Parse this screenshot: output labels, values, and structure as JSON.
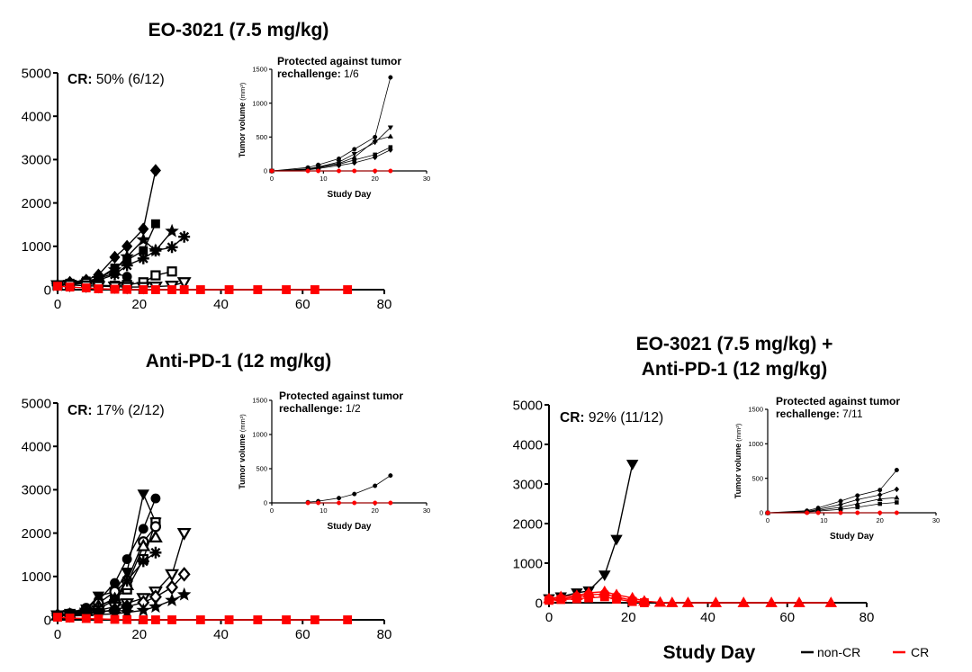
{
  "legend": {
    "noncr_label": "non-CR",
    "cr_label": "CR",
    "noncr_color": "#000000",
    "cr_color": "#ff0000"
  },
  "shared_xlabel": "Study Day",
  "chart_data": [
    {
      "type": "line",
      "title_lines": [
        "EO-3021 (7.5 mg/kg)"
      ],
      "cr_label": "CR:",
      "cr_value": "50% (6/12)",
      "xlim": [
        0,
        80
      ],
      "ylim": [
        0,
        5000
      ],
      "xticks": [
        "0",
        "20",
        "40",
        "60",
        "80"
      ],
      "yticks": [
        "0",
        "1000",
        "2000",
        "3000",
        "4000",
        "5000"
      ],
      "series": [
        {
          "group": "non-CR",
          "marker": "diamond",
          "x": [
            0,
            3,
            7,
            10,
            14,
            17,
            21,
            24
          ],
          "y": [
            100,
            170,
            220,
            340,
            750,
            1000,
            1400,
            2750
          ]
        },
        {
          "group": "non-CR",
          "marker": "square",
          "x": [
            0,
            3,
            7,
            10,
            14,
            17,
            21,
            24
          ],
          "y": [
            100,
            150,
            200,
            260,
            500,
            680,
            900,
            1520
          ]
        },
        {
          "group": "non-CR",
          "marker": "star",
          "x": [
            0,
            3,
            7,
            10,
            14,
            17,
            21,
            24,
            28
          ],
          "y": [
            100,
            130,
            180,
            260,
            460,
            760,
            1150,
            900,
            1350
          ]
        },
        {
          "group": "non-CR",
          "marker": "asterisk",
          "x": [
            0,
            3,
            7,
            10,
            14,
            17,
            21,
            24,
            28,
            31
          ],
          "y": [
            100,
            120,
            160,
            220,
            350,
            560,
            720,
            900,
            980,
            1220
          ]
        },
        {
          "group": "non-CR",
          "marker": "circle",
          "x": [
            0,
            3,
            7,
            10,
            14,
            17
          ],
          "y": [
            100,
            140,
            180,
            260,
            380,
            300
          ]
        },
        {
          "group": "non-CR",
          "marker": "square-open",
          "x": [
            0,
            3,
            7,
            10,
            14,
            17,
            21,
            24,
            28
          ],
          "y": [
            100,
            120,
            150,
            100,
            90,
            110,
            170,
            330,
            420
          ]
        },
        {
          "group": "non-CR",
          "marker": "triangle-down-open",
          "x": [
            0,
            3,
            7,
            10,
            14,
            17,
            21,
            24,
            28,
            31
          ],
          "y": [
            100,
            110,
            90,
            80,
            70,
            60,
            60,
            70,
            90,
            170
          ]
        },
        {
          "group": "CR",
          "marker": "square",
          "x": [
            0,
            3,
            7,
            10,
            14,
            17,
            21,
            24,
            28,
            31,
            35,
            42,
            49,
            56,
            63,
            71
          ],
          "y": [
            80,
            60,
            40,
            20,
            10,
            5,
            0,
            0,
            0,
            0,
            0,
            0,
            0,
            0,
            0,
            0
          ]
        }
      ],
      "inset": {
        "protected_label": "Protected against tumor",
        "rechallenge_label": "rechallenge:",
        "rechallenge_value": "1/6",
        "ylabel": "Tumor volume",
        "ylabel_unit": "(mm³)",
        "xlabel": "Study Day",
        "xlim": [
          0,
          30
        ],
        "ylim": [
          0,
          1500
        ],
        "xticks": [
          "0",
          "10",
          "20",
          "30"
        ],
        "yticks": [
          "0",
          "500",
          "1000",
          "1500"
        ],
        "series": [
          {
            "group": "non-CR",
            "marker": "circle",
            "x": [
              0,
              7,
              9,
              13,
              16,
              20,
              23
            ],
            "y": [
              0,
              50,
              90,
              180,
              320,
              500,
              1380
            ]
          },
          {
            "group": "non-CR",
            "marker": "triangle-down",
            "x": [
              0,
              7,
              9,
              13,
              16,
              20,
              23
            ],
            "y": [
              0,
              30,
              60,
              130,
              250,
              420,
              640
            ]
          },
          {
            "group": "non-CR",
            "marker": "triangle",
            "x": [
              0,
              7,
              9,
              13,
              16,
              20,
              23
            ],
            "y": [
              0,
              25,
              50,
              110,
              200,
              450,
              510
            ]
          },
          {
            "group": "non-CR",
            "marker": "square",
            "x": [
              0,
              7,
              9,
              13,
              16,
              20,
              23
            ],
            "y": [
              0,
              20,
              45,
              100,
              160,
              240,
              350
            ]
          },
          {
            "group": "non-CR",
            "marker": "diamond",
            "x": [
              0,
              7,
              9,
              13,
              16,
              20,
              23
            ],
            "y": [
              0,
              15,
              35,
              80,
              120,
              200,
              310
            ]
          },
          {
            "group": "CR",
            "marker": "circle",
            "x": [
              0,
              7,
              9,
              13,
              16,
              20,
              23
            ],
            "y": [
              0,
              0,
              0,
              0,
              0,
              0,
              0
            ]
          }
        ]
      }
    },
    {
      "type": "line",
      "title_lines": [
        "Anti-PD-1 (12 mg/kg)"
      ],
      "cr_label": "CR:",
      "cr_value": "17% (2/12)",
      "xlim": [
        0,
        80
      ],
      "ylim": [
        0,
        5000
      ],
      "xticks": [
        "0",
        "20",
        "40",
        "60",
        "80"
      ],
      "yticks": [
        "0",
        "1000",
        "2000",
        "3000",
        "4000",
        "5000"
      ],
      "series": [
        {
          "group": "non-CR",
          "marker": "circle",
          "x": [
            0,
            3,
            7,
            10,
            14,
            17,
            21,
            24
          ],
          "y": [
            100,
            150,
            280,
            450,
            850,
            1400,
            2100,
            2800
          ]
        },
        {
          "group": "non-CR",
          "marker": "triangle-down",
          "x": [
            0,
            3,
            7,
            10,
            14,
            17,
            21,
            24
          ],
          "y": [
            100,
            150,
            250,
            550,
            650,
            1100,
            2900,
            2250
          ]
        },
        {
          "group": "non-CR",
          "marker": "square-open",
          "x": [
            0,
            3,
            7,
            10,
            14,
            17,
            21,
            24
          ],
          "y": [
            100,
            130,
            200,
            300,
            500,
            700,
            1400,
            2250
          ]
        },
        {
          "group": "non-CR",
          "marker": "circle-open",
          "x": [
            0,
            3,
            7,
            10,
            14,
            17,
            21,
            24
          ],
          "y": [
            100,
            140,
            220,
            380,
            650,
            900,
            1800,
            2150
          ]
        },
        {
          "group": "non-CR",
          "marker": "triangle-open",
          "x": [
            0,
            3,
            7,
            10,
            14,
            17,
            21,
            24
          ],
          "y": [
            100,
            120,
            200,
            320,
            480,
            800,
            1700,
            1900
          ]
        },
        {
          "group": "non-CR",
          "marker": "asterisk",
          "x": [
            0,
            3,
            7,
            10,
            14,
            17,
            21,
            24
          ],
          "y": [
            100,
            120,
            190,
            260,
            450,
            900,
            1350,
            1550
          ]
        },
        {
          "group": "non-CR",
          "marker": "triangle-down-open",
          "x": [
            0,
            3,
            7,
            10,
            14,
            17,
            21,
            24,
            28,
            31
          ],
          "y": [
            100,
            110,
            160,
            220,
            300,
            380,
            500,
            650,
            1050,
            2000
          ]
        },
        {
          "group": "non-CR",
          "marker": "diamond-open",
          "x": [
            0,
            3,
            7,
            10,
            14,
            17,
            21,
            24,
            28,
            31
          ],
          "y": [
            100,
            100,
            130,
            170,
            230,
            300,
            400,
            530,
            750,
            1050
          ]
        },
        {
          "group": "non-CR",
          "marker": "star",
          "x": [
            0,
            3,
            7,
            10,
            14,
            17,
            21,
            24,
            28,
            31
          ],
          "y": [
            100,
            90,
            100,
            120,
            140,
            170,
            220,
            300,
            450,
            580
          ]
        },
        {
          "group": "non-CR",
          "marker": "square",
          "x": [
            0,
            3,
            7,
            10,
            14,
            17
          ],
          "y": [
            100,
            110,
            140,
            180,
            230,
            300
          ]
        },
        {
          "group": "CR",
          "marker": "square",
          "x": [
            0,
            3,
            7,
            10,
            14,
            17,
            21,
            24,
            28,
            35,
            42,
            49,
            56,
            63,
            71
          ],
          "y": [
            60,
            40,
            30,
            20,
            10,
            5,
            0,
            0,
            0,
            0,
            0,
            0,
            0,
            0,
            0
          ]
        }
      ],
      "inset": {
        "protected_label": "Protected against tumor",
        "rechallenge_label": "rechallenge:",
        "rechallenge_value": "1/2",
        "ylabel": "Tumor volume",
        "ylabel_unit": "(mm³)",
        "xlabel": "Study Day",
        "xlim": [
          0,
          30
        ],
        "ylim": [
          0,
          1500
        ],
        "xticks": [
          "0",
          "10",
          "20",
          "30"
        ],
        "yticks": [
          "0",
          "500",
          "1000",
          "1500"
        ],
        "series": [
          {
            "group": "non-CR",
            "marker": "circle",
            "x": [
              7,
              9,
              13,
              16,
              20,
              23
            ],
            "y": [
              10,
              25,
              70,
              130,
              250,
              400
            ]
          },
          {
            "group": "CR",
            "marker": "circle",
            "x": [
              7,
              9,
              13,
              16,
              20,
              23
            ],
            "y": [
              0,
              0,
              0,
              0,
              0,
              0
            ]
          }
        ]
      }
    },
    {
      "type": "line",
      "title_lines": [
        "EO-3021 (7.5 mg/kg) +",
        "Anti-PD-1 (12 mg/kg)"
      ],
      "cr_label": "CR:",
      "cr_value": "92% (11/12)",
      "xlim": [
        0,
        80
      ],
      "ylim": [
        0,
        5000
      ],
      "xticks": [
        "0",
        "20",
        "40",
        "60",
        "80"
      ],
      "yticks": [
        "0",
        "1000",
        "2000",
        "3000",
        "4000",
        "5000"
      ],
      "series": [
        {
          "group": "non-CR",
          "marker": "triangle-down",
          "x": [
            0,
            3,
            7,
            10,
            14,
            17,
            21
          ],
          "y": [
            100,
            150,
            250,
            300,
            700,
            1600,
            3500
          ]
        },
        {
          "group": "CR",
          "marker": "triangle",
          "x": [
            0,
            3,
            7,
            10,
            14,
            17,
            21,
            24,
            28,
            31,
            35,
            42,
            49,
            56,
            63,
            71
          ],
          "y": [
            100,
            150,
            180,
            250,
            280,
            200,
            120,
            40,
            10,
            0,
            0,
            0,
            0,
            0,
            0,
            0
          ]
        },
        {
          "group": "CR",
          "marker": "circle",
          "x": [
            0,
            3,
            7,
            10,
            14,
            17,
            21,
            24
          ],
          "y": [
            80,
            100,
            150,
            200,
            220,
            150,
            60,
            10
          ]
        },
        {
          "group": "CR",
          "marker": "square",
          "x": [
            0,
            3,
            7,
            10,
            14,
            17,
            21,
            24
          ],
          "y": [
            60,
            80,
            100,
            120,
            150,
            90,
            30,
            0
          ]
        }
      ],
      "inset": {
        "protected_label": "Protected against tumor",
        "rechallenge_label": "rechallenge:",
        "rechallenge_value": "7/11",
        "ylabel": "Tumor volume",
        "ylabel_unit": "(mm³)",
        "xlabel": "Study Day",
        "xlim": [
          0,
          30
        ],
        "ylim": [
          0,
          1500
        ],
        "xticks": [
          "0",
          "10",
          "20",
          "30"
        ],
        "yticks": [
          "0",
          "500",
          "1000",
          "1500"
        ],
        "series": [
          {
            "group": "non-CR",
            "marker": "circle",
            "x": [
              0,
              7,
              9,
              13,
              16,
              20,
              23
            ],
            "y": [
              0,
              30,
              70,
              170,
              250,
              330,
              620
            ]
          },
          {
            "group": "non-CR",
            "marker": "diamond",
            "x": [
              0,
              7,
              9,
              13,
              16,
              20,
              23
            ],
            "y": [
              0,
              20,
              50,
              120,
              190,
              260,
              340
            ]
          },
          {
            "group": "non-CR",
            "marker": "triangle",
            "x": [
              0,
              7,
              9,
              13,
              16,
              20,
              23
            ],
            "y": [
              0,
              15,
              35,
              80,
              130,
              200,
              220
            ]
          },
          {
            "group": "non-CR",
            "marker": "square",
            "x": [
              0,
              7,
              9,
              13,
              16,
              20,
              23
            ],
            "y": [
              0,
              10,
              25,
              50,
              80,
              130,
              150
            ]
          },
          {
            "group": "CR",
            "marker": "circle",
            "x": [
              0,
              7,
              9,
              13,
              16,
              20,
              23
            ],
            "y": [
              0,
              0,
              0,
              0,
              0,
              0,
              0
            ]
          }
        ]
      }
    }
  ]
}
